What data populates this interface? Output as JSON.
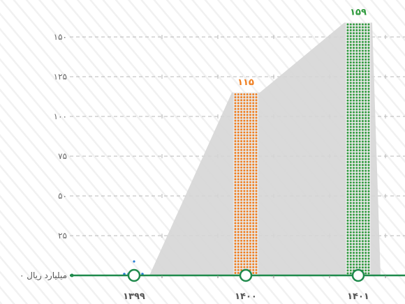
{
  "chart_data": {
    "type": "bar",
    "categories": [
      "۱۳۹۹",
      "۱۴۰۰",
      "۱۴۰۱"
    ],
    "values": [
      0.5,
      115,
      159
    ],
    "value_labels": [
      "",
      "۱۱۵",
      "۱۵۹"
    ],
    "colors": [
      "#2a7fd4",
      "#f07e1f",
      "#2e9a3c"
    ],
    "y_ticks": [
      {
        "value": 0,
        "label": "۰ میلیارد ریال"
      },
      {
        "value": 25,
        "label": "۲۵"
      },
      {
        "value": 50,
        "label": "۵۰"
      },
      {
        "value": 75,
        "label": "۷۵"
      },
      {
        "value": 100,
        "label": "۱۰۰"
      },
      {
        "value": 125,
        "label": "۱۲۵"
      },
      {
        "value": 150,
        "label": "۱۵۰"
      }
    ],
    "ylim": [
      0,
      159
    ],
    "grid": true,
    "accent_color": "#1f8a4c",
    "area_color": "#d6d6d6"
  }
}
